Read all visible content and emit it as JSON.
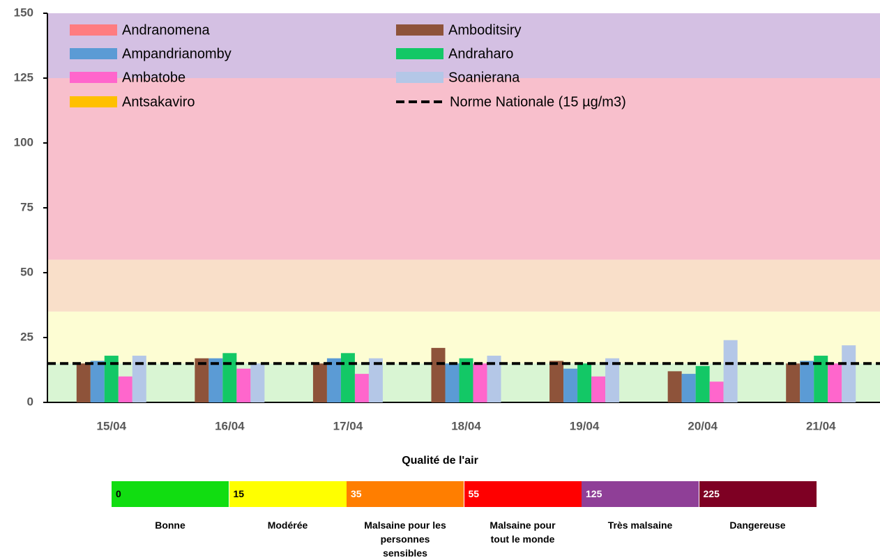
{
  "chart_data": {
    "type": "bar",
    "categories": [
      "15/04",
      "16/04",
      "17/04",
      "18/04",
      "19/04",
      "20/04",
      "21/04"
    ],
    "series": [
      {
        "name": "Andranomena",
        "color": "#ff7c80",
        "values": [
          null,
          null,
          null,
          null,
          null,
          null,
          null
        ]
      },
      {
        "name": "Amboditsiry",
        "color": "#8e533a",
        "values": [
          15,
          17,
          15,
          21,
          16,
          12,
          15
        ]
      },
      {
        "name": "Ampandrianomby",
        "color": "#5b9bd5",
        "values": [
          16,
          17,
          17,
          15,
          13,
          11,
          16
        ]
      },
      {
        "name": "Andraharo",
        "color": "#13c866",
        "values": [
          18,
          19,
          19,
          17,
          15,
          14,
          18
        ]
      },
      {
        "name": "Ambatobe",
        "color": "#ff66cc",
        "values": [
          10,
          13,
          11,
          15,
          10,
          8,
          15
        ]
      },
      {
        "name": "Soanierana",
        "color": "#b4c7e7",
        "values": [
          18,
          15,
          17,
          18,
          17,
          24,
          22
        ]
      },
      {
        "name": "Antsakaviro",
        "color": "#ffc000",
        "values": [
          null,
          null,
          null,
          null,
          null,
          null,
          null
        ]
      }
    ],
    "reference_line": {
      "name": "Norme Nationale (15 µg/m3)",
      "value": 15,
      "color": "#000000"
    },
    "bands": [
      {
        "from": 0,
        "to": 15,
        "color": "#d9f5d3"
      },
      {
        "from": 15,
        "to": 35,
        "color": "#fdfdd3"
      },
      {
        "from": 35,
        "to": 55,
        "color": "#f9dfc9"
      },
      {
        "from": 55,
        "to": 125,
        "color": "#f8bfcc"
      },
      {
        "from": 125,
        "to": 150,
        "color": "#d4c0e3"
      }
    ],
    "ylim": [
      0,
      150
    ],
    "yticks": [
      0,
      25,
      50,
      75,
      100,
      125,
      150
    ],
    "air_quality_scale": {
      "title": "Qualité de l'air",
      "levels": [
        {
          "value": 0,
          "label": "Bonne",
          "color": "#11dd11",
          "text_color": "#000000"
        },
        {
          "value": 15,
          "label": "Modérée",
          "color": "#ffff00",
          "text_color": "#000000"
        },
        {
          "value": 35,
          "label": "Malsaine pour les personnes sensibles",
          "color": "#ff7e00",
          "text_color": "#ffffff"
        },
        {
          "value": 55,
          "label": "Malsaine pour tout le monde",
          "color": "#ff0000",
          "text_color": "#ffffff"
        },
        {
          "value": 125,
          "label": "Très malsaine",
          "color": "#8f3f97",
          "text_color": "#ffffff"
        },
        {
          "value": 225,
          "label": "Dangereuse",
          "color": "#7e0023",
          "text_color": "#ffffff"
        }
      ]
    }
  }
}
